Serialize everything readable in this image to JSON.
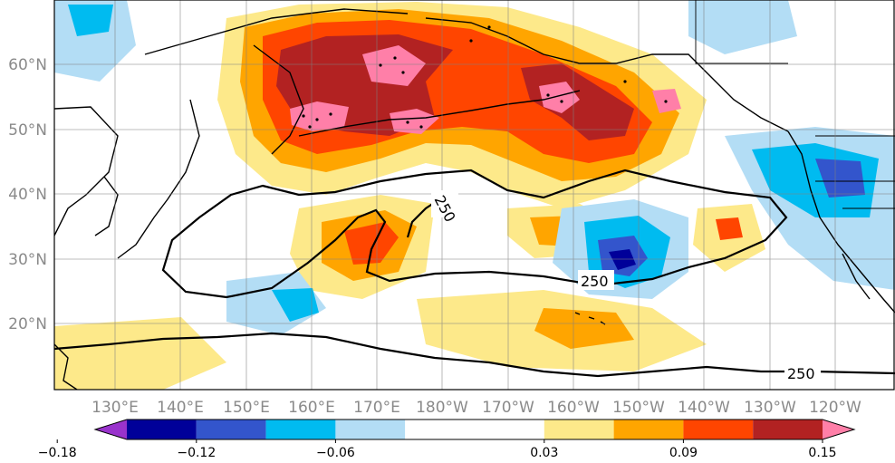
{
  "map": {
    "lon_labels": [
      "130°E",
      "140°E",
      "150°E",
      "160°E",
      "170°E",
      "180°W",
      "170°W",
      "160°W",
      "150°W",
      "140°W",
      "130°W",
      "120°W"
    ],
    "lat_labels": [
      "60°N",
      "50°N",
      "40°N",
      "30°N",
      "20°N"
    ],
    "lon_range": [
      122,
      250
    ],
    "lat_range": [
      10,
      70
    ],
    "contour_level": "250",
    "contour_labels": [
      "250",
      "250",
      "250"
    ],
    "coastline_color": "#000000",
    "grid": true
  },
  "colorbar": {
    "tick_labels": [
      "−0.18",
      "−0.12",
      "−0.06",
      "0.03",
      "0.09",
      "0.15"
    ],
    "tick_values": [
      -0.18,
      -0.12,
      -0.06,
      0.03,
      0.09,
      0.15
    ],
    "levels": [
      -0.18,
      -0.15,
      -0.12,
      -0.09,
      -0.06,
      -0.03,
      0.03,
      0.06,
      0.09,
      0.12,
      0.15,
      0.18
    ],
    "colors": [
      "#9933cc",
      "#000099",
      "#3355cc",
      "#00bbf0",
      "#b3ddf5",
      "#ffffff",
      "#fde98a",
      "#ffa500",
      "#ff4500",
      "#b22222",
      "#ff7fa8"
    ],
    "extend": "both"
  }
}
